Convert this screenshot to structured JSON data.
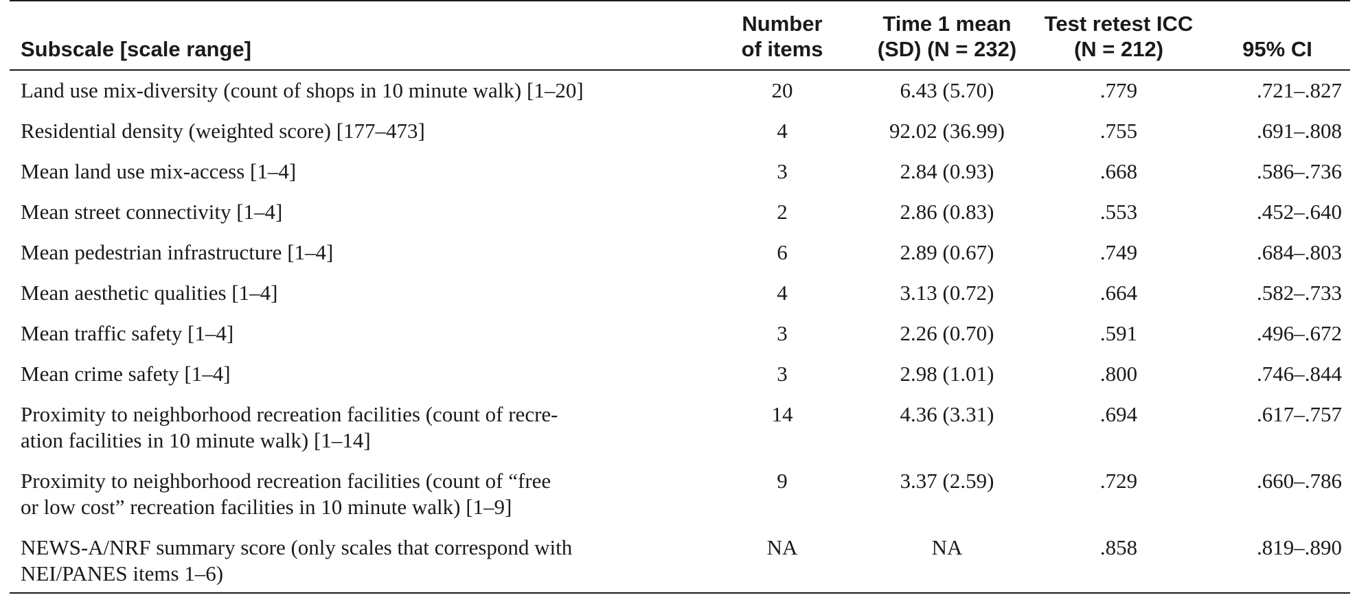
{
  "table": {
    "headers": {
      "subscale": "Subscale [scale range]",
      "num_items": [
        "Number",
        "of items"
      ],
      "time1_mean": [
        "Time 1 mean",
        "(SD) (N = 232)"
      ],
      "icc": [
        "Test retest ICC",
        "(N = 212)"
      ],
      "ci": "95% CI"
    },
    "rows": [
      {
        "subscale": [
          "Land use mix-diversity (count of shops in 10 minute walk) [1–20]"
        ],
        "items": "20",
        "mean": "6.43 (5.70)",
        "icc": ".779",
        "ci": ".721–.827"
      },
      {
        "subscale": [
          "Residential density (weighted score) [177–473]"
        ],
        "items": "4",
        "mean": "92.02 (36.99)",
        "icc": ".755",
        "ci": ".691–.808"
      },
      {
        "subscale": [
          "Mean land use mix-access [1–4]"
        ],
        "items": "3",
        "mean": "2.84 (0.93)",
        "icc": ".668",
        "ci": ".586–.736"
      },
      {
        "subscale": [
          "Mean street connectivity [1–4]"
        ],
        "items": "2",
        "mean": "2.86 (0.83)",
        "icc": ".553",
        "ci": ".452–.640"
      },
      {
        "subscale": [
          "Mean pedestrian infrastructure [1–4]"
        ],
        "items": "6",
        "mean": "2.89 (0.67)",
        "icc": ".749",
        "ci": ".684–.803"
      },
      {
        "subscale": [
          "Mean aesthetic qualities [1–4]"
        ],
        "items": "4",
        "mean": "3.13 (0.72)",
        "icc": ".664",
        "ci": ".582–.733"
      },
      {
        "subscale": [
          "Mean traffic safety [1–4]"
        ],
        "items": "3",
        "mean": "2.26 (0.70)",
        "icc": ".591",
        "ci": ".496–.672"
      },
      {
        "subscale": [
          "Mean crime safety [1–4]"
        ],
        "items": "3",
        "mean": "2.98 (1.01)",
        "icc": ".800",
        "ci": ".746–.844"
      },
      {
        "subscale": [
          "Proximity to neighborhood recreation facilities (count of recre-",
          "ation facilities in 10 minute walk) [1–14]"
        ],
        "items": "14",
        "mean": "4.36 (3.31)",
        "icc": ".694",
        "ci": ".617–.757"
      },
      {
        "subscale": [
          "Proximity to neighborhood recreation facilities (count of “free",
          "or low cost” recreation facilities in 10 minute walk) [1–9]"
        ],
        "items": "9",
        "mean": "3.37 (2.59)",
        "icc": ".729",
        "ci": ".660–.786"
      },
      {
        "subscale": [
          "NEWS-A/NRF summary score (only scales that correspond with",
          "NEI/PANES items 1–6)"
        ],
        "items": "NA",
        "mean": "NA",
        "icc": ".858",
        "ci": ".819–.890"
      }
    ]
  }
}
